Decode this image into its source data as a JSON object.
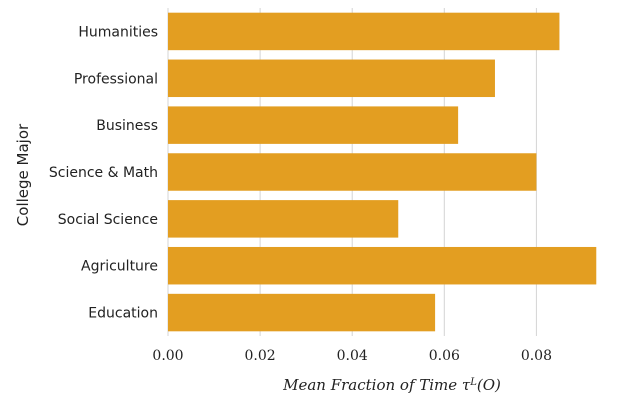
{
  "chart_data": {
    "type": "bar",
    "orientation": "horizontal",
    "categories": [
      "Humanities",
      "Professional",
      "Business",
      "Science & Math",
      "Social Science",
      "Agriculture",
      "Education"
    ],
    "values": [
      0.085,
      0.071,
      0.063,
      0.08,
      0.05,
      0.093,
      0.058
    ],
    "xlabel": "Mean Fraction of Time τ",
    "xlabel_sup": "L",
    "xlabel_suffix": "(O)",
    "ylabel": "College Major",
    "xlim": [
      0,
      0.0975
    ],
    "xticks": [
      "0.00",
      "0.02",
      "0.04",
      "0.06",
      "0.08"
    ],
    "grid": "vertical",
    "bar_color": "#E39E21"
  }
}
